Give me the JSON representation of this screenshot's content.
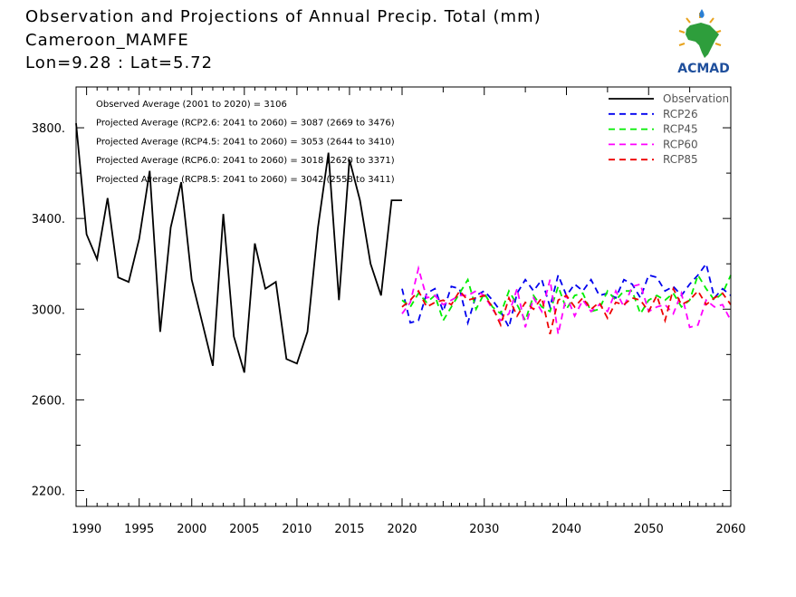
{
  "header": {
    "title": "Observation and Projections of Annual Precip. Total (mm)",
    "station": "Cameroon_MAMFE",
    "coords": "Lon=9.28 : Lat=5.72"
  },
  "logo": {
    "text": "ACMAD",
    "icon": "africa-map-sun-icon",
    "color": "#1f4f9c"
  },
  "chart_data": {
    "type": "line",
    "title": "Observation and Projections of Annual Precip. Total (mm)",
    "xlim": [
      1989,
      2060
    ],
    "ylim": [
      2130,
      3980
    ],
    "yticks": [
      2200,
      2600,
      3000,
      3400,
      3800
    ],
    "ytick_labels": [
      "2200.",
      "2600.",
      "3000.",
      "3400.",
      "3800."
    ],
    "xticks_left": [
      1990,
      1995,
      2000,
      2005,
      2010,
      2015,
      2020
    ],
    "xticks_right": [
      2030,
      2040,
      2050,
      2060
    ],
    "x_axis_break_year": 2020,
    "annotations": [
      "Observed Average (2001 to 2020) = 3106",
      "Projected Average (RCP2.6: 2041 to 2060) = 3087 (2669 to 3476)",
      "Projected Average (RCP4.5: 2041 to 2060) = 3053 (2644 to 3410)",
      "Projected Average (RCP6.0: 2041 to 2060) = 3018 (2620 to 3371)",
      "Projected Average (RCP8.5: 2041 to 2060) = 3042 (2558 to 3411)"
    ],
    "legend_position": "top-right",
    "series": [
      {
        "name": "Observation",
        "color": "#000000",
        "dash": false,
        "x": [
          1989,
          1990,
          1991,
          1992,
          1993,
          1994,
          1995,
          1996,
          1997,
          1998,
          1999,
          2000,
          2001,
          2002,
          2003,
          2004,
          2005,
          2006,
          2007,
          2008,
          2009,
          2010,
          2011,
          2012,
          2013,
          2014,
          2015,
          2016,
          2017,
          2018,
          2019,
          2020
        ],
        "values": [
          3820,
          3330,
          3220,
          3490,
          3140,
          3120,
          3310,
          3610,
          2900,
          3360,
          3560,
          3130,
          2940,
          2750,
          3420,
          2880,
          2720,
          3290,
          3090,
          3120,
          2780,
          2760,
          2900,
          3360,
          3690,
          3040,
          3660,
          3480,
          3200,
          3060,
          3480,
          3480
        ]
      },
      {
        "name": "RCP26",
        "color": "#0000ee",
        "dash": true,
        "x": [
          2020,
          2021,
          2022,
          2023,
          2024,
          2025,
          2026,
          2027,
          2028,
          2029,
          2030,
          2031,
          2032,
          2033,
          2034,
          2035,
          2036,
          2037,
          2038,
          2039,
          2040,
          2041,
          2042,
          2043,
          2044,
          2045,
          2046,
          2047,
          2048,
          2049,
          2050,
          2051,
          2052,
          2053,
          2054,
          2055,
          2056,
          2057,
          2058,
          2059,
          2060
        ],
        "values": [
          3090,
          2940,
          2950,
          3070,
          3090,
          2990,
          3100,
          3090,
          2940,
          3060,
          3080,
          3040,
          2990,
          2920,
          3070,
          3130,
          3080,
          3130,
          3010,
          3150,
          3060,
          3110,
          3080,
          3130,
          3060,
          3070,
          3050,
          3130,
          3110,
          3050,
          3150,
          3140,
          3080,
          3100,
          3060,
          3110,
          3150,
          3200,
          3050,
          3090,
          3060
        ]
      },
      {
        "name": "RCP45",
        "color": "#00ee00",
        "dash": true,
        "x": [
          2020,
          2021,
          2022,
          2023,
          2024,
          2025,
          2026,
          2027,
          2028,
          2029,
          2030,
          2031,
          2032,
          2033,
          2034,
          2035,
          2036,
          2037,
          2038,
          2039,
          2040,
          2041,
          2042,
          2043,
          2044,
          2045,
          2046,
          2047,
          2048,
          2049,
          2050,
          2051,
          2052,
          2053,
          2054,
          2055,
          2056,
          2057,
          2058,
          2059,
          2060
        ],
        "values": [
          3040,
          3010,
          3070,
          3030,
          3060,
          2950,
          3010,
          3070,
          3130,
          3000,
          3070,
          3010,
          2980,
          3080,
          3020,
          2950,
          3060,
          3010,
          2990,
          3100,
          3000,
          3060,
          3070,
          2990,
          3000,
          3080,
          3040,
          3080,
          3080,
          2980,
          3040,
          3060,
          3040,
          3070,
          3010,
          3040,
          3150,
          3090,
          3040,
          3070,
          3150
        ]
      },
      {
        "name": "RCP60",
        "color": "#ff00ff",
        "dash": true,
        "x": [
          2020,
          2021,
          2022,
          2023,
          2024,
          2025,
          2026,
          2027,
          2028,
          2029,
          2030,
          2031,
          2032,
          2033,
          2034,
          2035,
          2036,
          2037,
          2038,
          2039,
          2040,
          2041,
          2042,
          2043,
          2044,
          2045,
          2046,
          2047,
          2048,
          2049,
          2050,
          2051,
          2052,
          2053,
          2054,
          2055,
          2056,
          2057,
          2058,
          2059,
          2060
        ],
        "values": [
          2980,
          3030,
          3180,
          3050,
          3060,
          3020,
          3040,
          3060,
          3060,
          3080,
          3060,
          3000,
          2950,
          2980,
          3090,
          2920,
          3050,
          2990,
          3130,
          2890,
          3060,
          2970,
          3040,
          2990,
          3020,
          2990,
          3080,
          3010,
          3100,
          3110,
          2990,
          3010,
          3020,
          2980,
          3070,
          2920,
          2930,
          3040,
          3010,
          3020,
          2950
        ]
      },
      {
        "name": "RCP85",
        "color": "#ee0000",
        "dash": true,
        "x": [
          2020,
          2021,
          2022,
          2023,
          2024,
          2025,
          2026,
          2027,
          2028,
          2029,
          2030,
          2031,
          2032,
          2033,
          2034,
          2035,
          2036,
          2037,
          2038,
          2039,
          2040,
          2041,
          2042,
          2043,
          2044,
          2045,
          2046,
          2047,
          2048,
          2049,
          2050,
          2051,
          2052,
          2053,
          2054,
          2055,
          2056,
          2057,
          2058,
          2059,
          2060
        ],
        "values": [
          3010,
          3040,
          3080,
          3010,
          3030,
          3040,
          3020,
          3080,
          3040,
          3050,
          3060,
          3010,
          2930,
          3050,
          2970,
          3030,
          3000,
          3050,
          2890,
          3040,
          3060,
          3010,
          3050,
          3000,
          3030,
          2960,
          3030,
          3020,
          3050,
          3040,
          2990,
          3060,
          2950,
          3090,
          3020,
          3040,
          3080,
          3020,
          3050,
          3070,
          3020
        ]
      }
    ]
  }
}
